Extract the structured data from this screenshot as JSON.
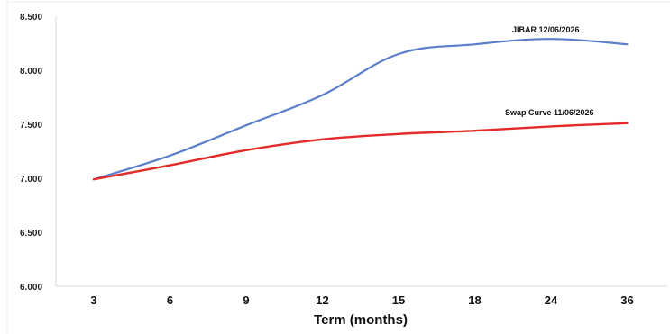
{
  "chart_data": {
    "type": "line",
    "title": "",
    "xlabel": "Term (months)",
    "ylabel": "",
    "categories": [
      "3",
      "6",
      "9",
      "12",
      "15",
      "18",
      "24",
      "36"
    ],
    "ylim": [
      6.0,
      8.5
    ],
    "yticks": [
      "6.000",
      "6.500",
      "7.000",
      "7.500",
      "8.000",
      "8.500"
    ],
    "grid": false,
    "legend": "inline labels at line ends",
    "series": [
      {
        "name": "JIBAR 12/06/2026",
        "color": "#5b7fcb",
        "values": [
          6.99,
          7.21,
          7.49,
          7.77,
          8.15,
          8.24,
          8.29,
          8.24
        ]
      },
      {
        "name": "Swap Curve 11/06/2026",
        "color": "#e52a2a",
        "values": [
          6.99,
          7.12,
          7.26,
          7.36,
          7.41,
          7.44,
          7.48,
          7.51
        ]
      }
    ]
  }
}
